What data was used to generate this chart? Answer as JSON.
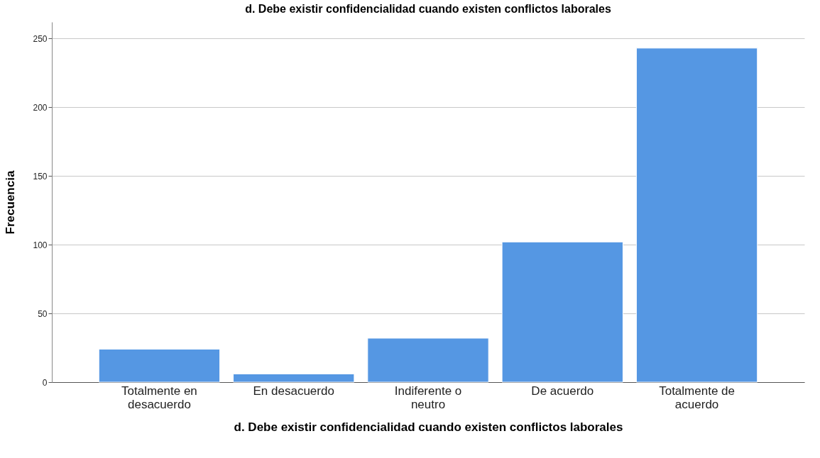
{
  "chart_data": {
    "type": "bar",
    "title": "d.  Debe existir confidencialidad cuando existen conflictos laborales",
    "xlabel": "d.  Debe existir confidencialidad cuando existen conflictos laborales",
    "ylabel": "Frecuencia",
    "categories": [
      "Totalmente en desacuerdo",
      "En desacuerdo",
      "Indiferente o neutro",
      "De acuerdo",
      "Totalmente de acuerdo"
    ],
    "values": [
      24,
      6,
      32,
      102,
      243
    ],
    "color": "#5597e3",
    "ylim": [
      0,
      262
    ],
    "yticks": [
      0,
      50,
      100,
      150,
      200,
      250
    ],
    "grid": "y"
  }
}
